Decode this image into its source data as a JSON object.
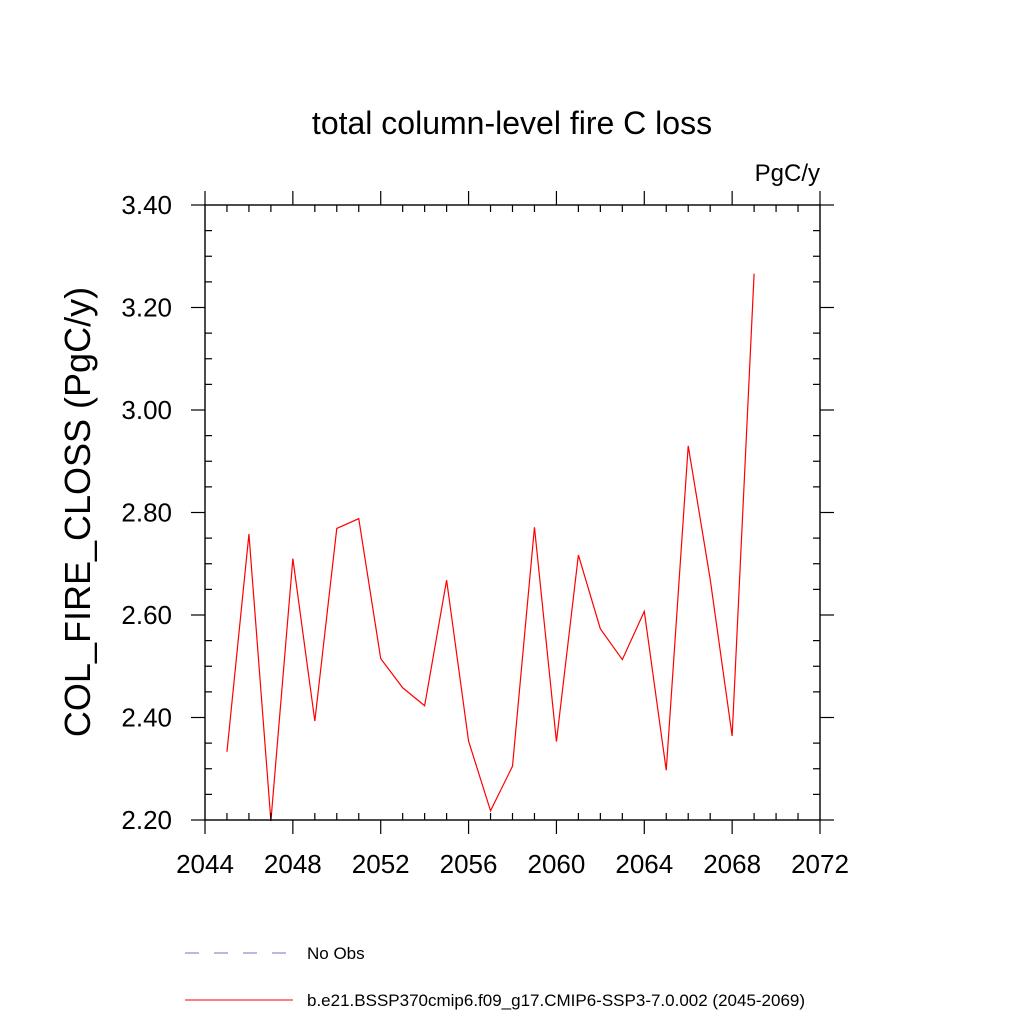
{
  "chart_data": {
    "type": "line",
    "title": "total column-level fire C loss",
    "units_label": "PgC/y",
    "ylabel": "COL_FIRE_CLOSS  (PgC/y)",
    "xlabel": "",
    "xlim": [
      2044,
      2072
    ],
    "ylim": [
      2.2,
      3.4
    ],
    "x_ticks": [
      2044,
      2048,
      2052,
      2056,
      2060,
      2064,
      2068,
      2072
    ],
    "x_tick_labels": [
      "2044",
      "2048",
      "2052",
      "2056",
      "2060",
      "2064",
      "2068",
      "2072"
    ],
    "y_ticks": [
      2.2,
      2.4,
      2.6,
      2.8,
      3.0,
      3.2,
      3.4
    ],
    "y_tick_labels": [
      "2.20",
      "2.40",
      "2.60",
      "2.80",
      "3.00",
      "3.20",
      "3.40"
    ],
    "grid": false,
    "legend_position": "bottom",
    "series": [
      {
        "name": "b.e21.BSSP370cmip6.f09_g17.CMIP6-SSP3-7.0.002 (2045-2069)",
        "color": "#ff0000",
        "style": "solid",
        "x": [
          2045,
          2046,
          2047,
          2048,
          2049,
          2050,
          2051,
          2052,
          2053,
          2054,
          2055,
          2056,
          2057,
          2058,
          2059,
          2060,
          2061,
          2062,
          2063,
          2064,
          2065,
          2066,
          2067,
          2068,
          2069
        ],
        "values": [
          2.333,
          2.758,
          2.198,
          2.71,
          2.393,
          2.769,
          2.788,
          2.515,
          2.458,
          2.423,
          2.668,
          2.354,
          2.218,
          2.305,
          2.771,
          2.353,
          2.717,
          2.573,
          2.513,
          2.607,
          2.297,
          2.93,
          2.67,
          2.364,
          3.266
        ]
      }
    ],
    "legend": [
      {
        "label": "No Obs",
        "color": "#7a6fc0",
        "style": "dashed"
      },
      {
        "label": "b.e21.BSSP370cmip6.f09_g17.CMIP6-SSP3-7.0.002 (2045-2069)",
        "color": "#ff0000",
        "style": "solid"
      }
    ]
  }
}
